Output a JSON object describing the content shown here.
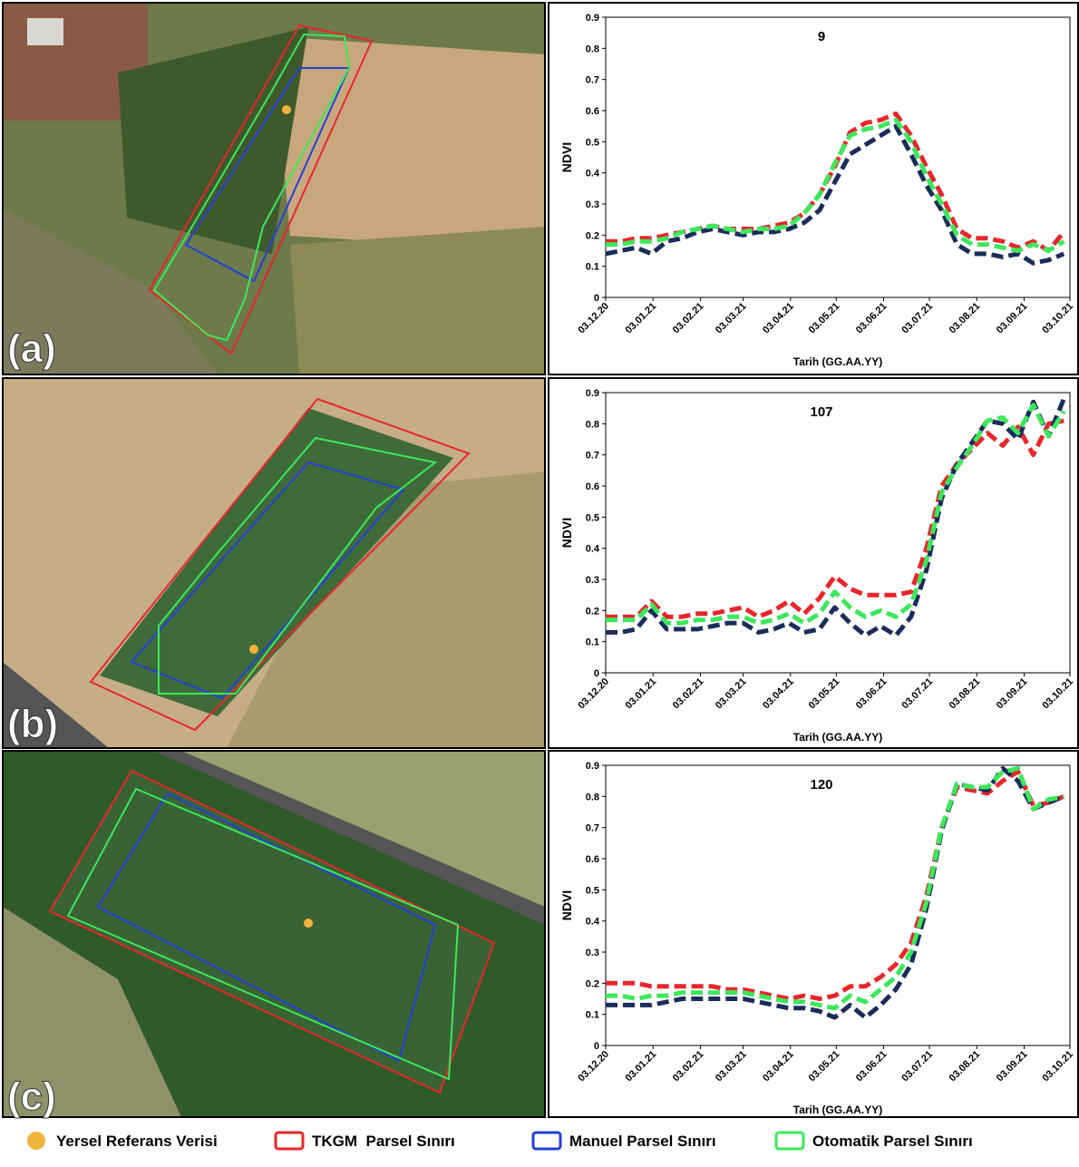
{
  "chart_data": [
    {
      "type": "line",
      "title": "9",
      "ylabel": "NDVI",
      "xlabel": "Tarih (GG.AA.YY)",
      "x": [
        "03.12.20",
        "13.12.20",
        "23.12.20",
        "02.01.21",
        "12.01.21",
        "22.01.21",
        "01.02.21",
        "11.02.21",
        "21.02.21",
        "03.03.21",
        "13.03.21",
        "23.03.21",
        "02.04.21",
        "12.04.21",
        "22.04.21",
        "02.05.21",
        "12.05.21",
        "22.05.21",
        "01.06.21",
        "11.06.21",
        "21.06.21",
        "01.07.21",
        "11.07.21",
        "21.07.21",
        "31.07.21",
        "10.08.21",
        "20.08.21",
        "30.08.21",
        "09.09.21",
        "19.09.21",
        "29.09.21"
      ],
      "xlim": [
        "03.12.20",
        "03.10.21"
      ],
      "xticks": [
        "03.12.20",
        "03.01.21",
        "03.02.21",
        "03.03.21",
        "03.04.21",
        "03.05.21",
        "03.06.21",
        "03.07.21",
        "03.08.21",
        "03.09.21",
        "03.10.21"
      ],
      "ylim": [
        0,
        0.9
      ],
      "yticks": [
        0,
        0.1,
        0.2,
        0.3,
        0.4,
        0.5,
        0.6,
        0.7,
        0.8,
        0.9
      ],
      "series": [
        {
          "color": "#e8262b",
          "values": [
            0.18,
            0.18,
            0.19,
            0.19,
            0.2,
            0.21,
            0.22,
            0.23,
            0.22,
            0.22,
            0.22,
            0.23,
            0.24,
            0.27,
            0.33,
            0.42,
            0.53,
            0.56,
            0.57,
            0.59,
            0.52,
            0.42,
            0.33,
            0.22,
            0.19,
            0.19,
            0.18,
            0.16,
            0.18,
            0.15,
            0.21
          ]
        },
        {
          "color": "#1a2d5a",
          "values": [
            0.14,
            0.15,
            0.16,
            0.14,
            0.18,
            0.19,
            0.21,
            0.22,
            0.21,
            0.2,
            0.21,
            0.21,
            0.22,
            0.24,
            0.28,
            0.37,
            0.46,
            0.49,
            0.52,
            0.55,
            0.46,
            0.36,
            0.28,
            0.17,
            0.14,
            0.14,
            0.13,
            0.14,
            0.11,
            0.12,
            0.14
          ]
        },
        {
          "color": "#3ce85a",
          "values": [
            0.17,
            0.17,
            0.18,
            0.18,
            0.19,
            0.21,
            0.22,
            0.23,
            0.22,
            0.21,
            0.22,
            0.22,
            0.23,
            0.27,
            0.33,
            0.43,
            0.52,
            0.54,
            0.55,
            0.57,
            0.5,
            0.39,
            0.3,
            0.2,
            0.17,
            0.17,
            0.16,
            0.15,
            0.17,
            0.15,
            0.18
          ]
        }
      ]
    },
    {
      "type": "line",
      "title": "107",
      "ylabel": "NDVI",
      "xlabel": "Tarih (GG.AA.YY)",
      "x": [
        "03.12.20",
        "13.12.20",
        "23.12.20",
        "02.01.21",
        "12.01.21",
        "22.01.21",
        "01.02.21",
        "11.02.21",
        "21.02.21",
        "03.03.21",
        "13.03.21",
        "23.03.21",
        "02.04.21",
        "12.04.21",
        "22.04.21",
        "02.05.21",
        "12.05.21",
        "22.05.21",
        "01.06.21",
        "11.06.21",
        "21.06.21",
        "01.07.21",
        "11.07.21",
        "21.07.21",
        "31.07.21",
        "10.08.21",
        "20.08.21",
        "30.08.21",
        "09.09.21",
        "19.09.21",
        "29.09.21"
      ],
      "xlim": [
        "03.12.20",
        "03.10.21"
      ],
      "xticks": [
        "03.12.20",
        "03.01.21",
        "03.02.21",
        "03.03.21",
        "03.04.21",
        "03.05.21",
        "03.06.21",
        "03.07.21",
        "03.08.21",
        "03.09.21",
        "03.10.21"
      ],
      "ylim": [
        0,
        0.9
      ],
      "yticks": [
        0,
        0.1,
        0.2,
        0.3,
        0.4,
        0.5,
        0.6,
        0.7,
        0.8,
        0.9
      ],
      "series": [
        {
          "color": "#e8262b",
          "values": [
            0.18,
            0.18,
            0.18,
            0.23,
            0.18,
            0.18,
            0.19,
            0.19,
            0.2,
            0.21,
            0.18,
            0.2,
            0.23,
            0.19,
            0.24,
            0.31,
            0.27,
            0.25,
            0.25,
            0.25,
            0.26,
            0.4,
            0.6,
            0.67,
            0.72,
            0.77,
            0.73,
            0.79,
            0.7,
            0.8,
            0.81
          ]
        },
        {
          "color": "#1a2d5a",
          "values": [
            0.13,
            0.13,
            0.14,
            0.2,
            0.14,
            0.14,
            0.14,
            0.15,
            0.16,
            0.16,
            0.13,
            0.14,
            0.16,
            0.13,
            0.14,
            0.21,
            0.16,
            0.12,
            0.15,
            0.12,
            0.18,
            0.33,
            0.56,
            0.67,
            0.74,
            0.81,
            0.8,
            0.75,
            0.87,
            0.76,
            0.88
          ]
        },
        {
          "color": "#3ce85a",
          "values": [
            0.17,
            0.17,
            0.17,
            0.22,
            0.16,
            0.16,
            0.17,
            0.17,
            0.18,
            0.18,
            0.16,
            0.17,
            0.19,
            0.16,
            0.19,
            0.26,
            0.21,
            0.18,
            0.2,
            0.18,
            0.22,
            0.36,
            0.58,
            0.66,
            0.73,
            0.81,
            0.82,
            0.77,
            0.86,
            0.76,
            0.84
          ]
        }
      ]
    },
    {
      "type": "line",
      "title": "120",
      "ylabel": "NDVI",
      "xlabel": "Tarih (GG.AA.YY)",
      "x": [
        "03.12.20",
        "13.12.20",
        "23.12.20",
        "02.01.21",
        "12.01.21",
        "22.01.21",
        "01.02.21",
        "11.02.21",
        "21.02.21",
        "03.03.21",
        "13.03.21",
        "23.03.21",
        "02.04.21",
        "12.04.21",
        "22.04.21",
        "02.05.21",
        "12.05.21",
        "22.05.21",
        "01.06.21",
        "11.06.21",
        "21.06.21",
        "01.07.21",
        "11.07.21",
        "21.07.21",
        "31.07.21",
        "10.08.21",
        "20.08.21",
        "30.08.21",
        "09.09.21",
        "19.09.21",
        "29.09.21"
      ],
      "xlim": [
        "03.12.20",
        "03.10.21"
      ],
      "xticks": [
        "03.12.20",
        "03.01.21",
        "03.02.21",
        "03.03.21",
        "03.04.21",
        "03.05.21",
        "03.06.21",
        "03.07.21",
        "03.08.21",
        "03.09.21",
        "03.10.21"
      ],
      "ylim": [
        0,
        0.9
      ],
      "yticks": [
        0,
        0.1,
        0.2,
        0.3,
        0.4,
        0.5,
        0.6,
        0.7,
        0.8,
        0.9
      ],
      "series": [
        {
          "color": "#e8262b",
          "values": [
            0.2,
            0.2,
            0.2,
            0.19,
            0.19,
            0.19,
            0.19,
            0.19,
            0.18,
            0.18,
            0.17,
            0.16,
            0.15,
            0.16,
            0.15,
            0.16,
            0.19,
            0.19,
            0.22,
            0.26,
            0.33,
            0.48,
            0.7,
            0.83,
            0.82,
            0.81,
            0.85,
            0.88,
            0.77,
            0.78,
            0.8
          ]
        },
        {
          "color": "#1a2d5a",
          "values": [
            0.13,
            0.13,
            0.13,
            0.13,
            0.14,
            0.15,
            0.15,
            0.15,
            0.15,
            0.15,
            0.14,
            0.13,
            0.12,
            0.12,
            0.11,
            0.09,
            0.13,
            0.09,
            0.13,
            0.18,
            0.26,
            0.44,
            0.69,
            0.84,
            0.83,
            0.82,
            0.89,
            0.85,
            0.76,
            0.78,
            0.8
          ]
        },
        {
          "color": "#3ce85a",
          "values": [
            0.16,
            0.16,
            0.15,
            0.16,
            0.16,
            0.17,
            0.17,
            0.17,
            0.17,
            0.17,
            0.16,
            0.15,
            0.14,
            0.14,
            0.13,
            0.12,
            0.16,
            0.14,
            0.18,
            0.22,
            0.3,
            0.46,
            0.7,
            0.84,
            0.83,
            0.83,
            0.88,
            0.89,
            0.76,
            0.79,
            0.8
          ]
        }
      ]
    }
  ],
  "panel_labels": [
    "(a)",
    "(b)",
    "(c)"
  ],
  "legend": [
    {
      "label": "Yersel Referans Verisi",
      "color": "#f0b43c",
      "marker": "dot"
    },
    {
      "label": "TKGM  Parsel Sınırı",
      "color": "#e8262b",
      "marker": "box"
    },
    {
      "label": "Manuel Parsel Sınırı",
      "color": "#2340d8",
      "marker": "box"
    },
    {
      "label": "Otomatik Parsel Sınırı",
      "color": "#3ce85a",
      "marker": "box"
    }
  ]
}
